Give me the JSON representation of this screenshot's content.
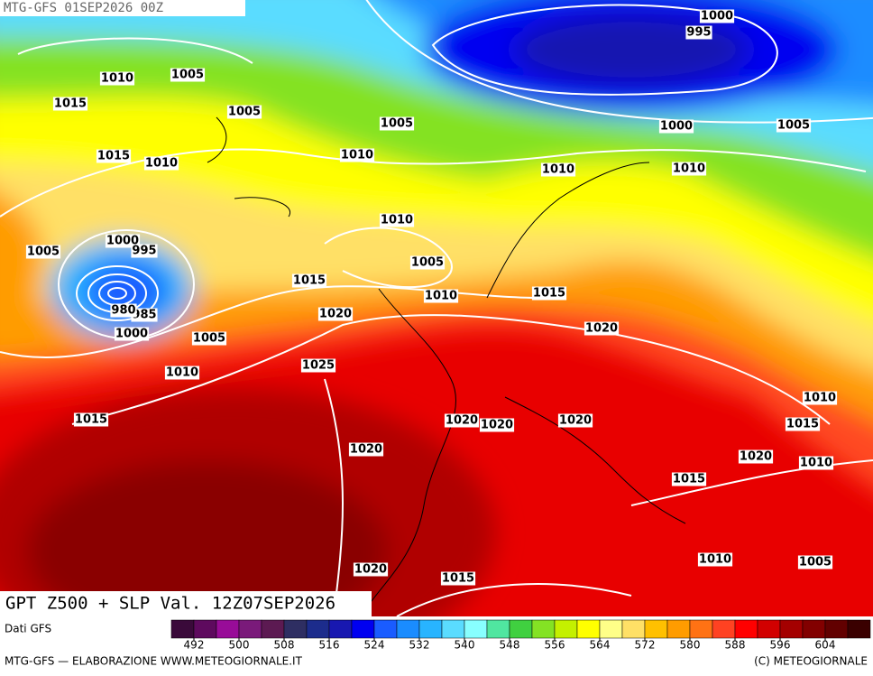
{
  "header": "MTG-GFS 01SEP2026 00Z",
  "map_title": "GPT Z500 + SLP Val. 12Z07SEP2026",
  "isobar_labels": [
    1000,
    995,
    1010,
    1005,
    1015,
    1005,
    1005,
    1000,
    1005,
    1015,
    1010,
    1010,
    1010,
    1010,
    1010,
    1000,
    995,
    1005,
    1005,
    1015,
    1015,
    1010,
    985,
    980,
    1020,
    1020,
    1000,
    1005,
    1010,
    1025,
    1010,
    1015,
    1020,
    1020,
    1020,
    1015,
    1020,
    1020,
    1010,
    1015,
    1010,
    1005,
    1020,
    1015
  ],
  "source": "Dati GFS",
  "colorbar": {
    "range": [
      488,
      612
    ],
    "ticks": [
      492,
      500,
      508,
      516,
      524,
      532,
      540,
      548,
      556,
      564,
      572,
      580,
      588,
      596,
      604
    ],
    "colors": [
      "#3a0a3a",
      "#5e0a5e",
      "#980c98",
      "#7a1a7a",
      "#5c1a52",
      "#2e2e62",
      "#1c2c8c",
      "#1818b0",
      "#0000f0",
      "#1a5cff",
      "#1a8cff",
      "#28b4ff",
      "#5adcff",
      "#88ffff",
      "#50e6a0",
      "#40d040",
      "#84e224",
      "#c4f000",
      "#ffff00",
      "#ffff88",
      "#ffe066",
      "#ffc000",
      "#ff9c00",
      "#ff7214",
      "#ff4222",
      "#ff0000",
      "#d20000",
      "#a40000",
      "#820000",
      "#620000",
      "#3a0000"
    ]
  },
  "footer_left": "MTG-GFS — ELABORAZIONE WWW.METEOGIORNALE.IT",
  "footer_right": "(C) METEOGIORNALE"
}
